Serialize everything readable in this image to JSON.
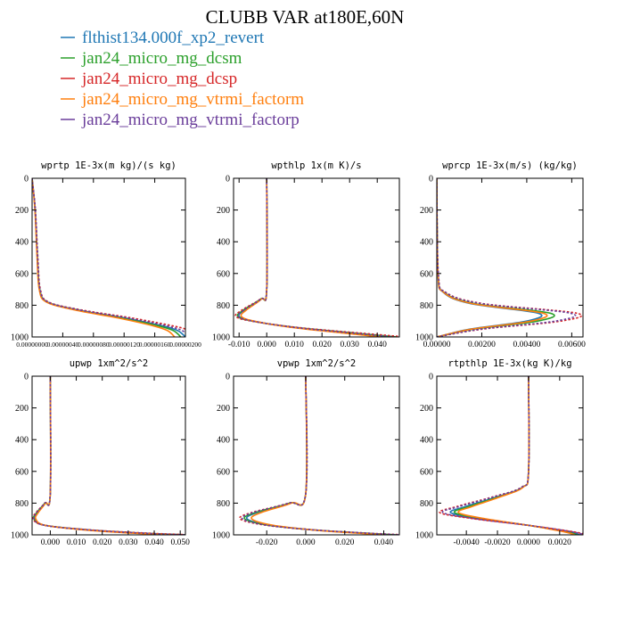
{
  "figure_title": "CLUBB VAR at180E,60N",
  "legend": [
    {
      "label": "flthist134.000f_xp2_revert",
      "color": "#1f77b4"
    },
    {
      "label": "jan24_micro_mg_dcsm",
      "color": "#2ca02c"
    },
    {
      "label": "jan24_micro_mg_dcsp",
      "color": "#d62728"
    },
    {
      "label": "jan24_micro_mg_vtrmi_factorm",
      "color": "#ff7f0e"
    },
    {
      "label": "jan24_micro_mg_vtrmi_factorp",
      "color": "#6a3d9a"
    }
  ],
  "chart_data": [
    {
      "type": "line",
      "title": "wprtp  1E-3x(m kg)/(s kg)",
      "xlim": [
        0,
        2e-06
      ],
      "ylim": [
        1000,
        0
      ],
      "yticks": [
        0,
        200,
        400,
        600,
        800,
        1000
      ],
      "xtick_labels": [
        "0.00000000",
        "0.00000040",
        "0.00000080",
        "0.00000120",
        "0.00000160",
        "0.00000200"
      ],
      "shape": "tail",
      "mean": [
        [
          0,
          0
        ],
        [
          4e-08,
          200
        ],
        [
          7e-08,
          500
        ],
        [
          1e-07,
          700
        ],
        [
          2e-07,
          780
        ],
        [
          6e-07,
          830
        ],
        [
          1.2e-06,
          880
        ],
        [
          1.7e-06,
          930
        ],
        [
          1.9e-06,
          960
        ],
        [
          2e-06,
          1000
        ]
      ],
      "factors": [
        1.0,
        0.97,
        1.08,
        0.93,
        1.03
      ],
      "series": [
        {
          "name": "flthist134.000f_xp2_revert",
          "color": "#1f77b4",
          "dash": false
        },
        {
          "name": "jan24_micro_mg_dcsm",
          "color": "#2ca02c",
          "dash": false
        },
        {
          "name": "jan24_micro_mg_dcsp",
          "color": "#d62728",
          "dash": true
        },
        {
          "name": "jan24_micro_mg_vtrmi_factorm",
          "color": "#ff7f0e",
          "dash": false
        },
        {
          "name": "jan24_micro_mg_vtrmi_factorp",
          "color": "#6a3d9a",
          "dash": true
        }
      ]
    },
    {
      "type": "line",
      "title": "wpthlp  1x(m K)/s",
      "xlim": [
        -0.012,
        0.048
      ],
      "ylim": [
        1000,
        0
      ],
      "yticks": [
        0,
        200,
        400,
        600,
        800,
        1000
      ],
      "xticks": [
        -0.01,
        0.0,
        0.01,
        0.02,
        0.03,
        0.04
      ],
      "xtick_labels": [
        "-0.010",
        "0.000",
        "0.010",
        "0.020",
        "0.030",
        "0.040"
      ],
      "shape": "dip-tail",
      "mean": [
        [
          0,
          0
        ],
        [
          0,
          700
        ],
        [
          -0.002,
          760
        ],
        [
          -0.008,
          830
        ],
        [
          -0.01,
          870
        ],
        [
          -0.005,
          900
        ],
        [
          0.01,
          940
        ],
        [
          0.03,
          975
        ],
        [
          0.045,
          1000
        ]
      ],
      "factors": [
        1.0,
        1.05,
        1.12,
        0.92,
        1.02
      ],
      "series": [
        {
          "name": "flthist134.000f_xp2_revert",
          "color": "#1f77b4",
          "dash": false
        },
        {
          "name": "jan24_micro_mg_dcsm",
          "color": "#2ca02c",
          "dash": false
        },
        {
          "name": "jan24_micro_mg_dcsp",
          "color": "#d62728",
          "dash": true
        },
        {
          "name": "jan24_micro_mg_vtrmi_factorm",
          "color": "#ff7f0e",
          "dash": false
        },
        {
          "name": "jan24_micro_mg_vtrmi_factorp",
          "color": "#6a3d9a",
          "dash": true
        }
      ]
    },
    {
      "type": "line",
      "title": "wprcp  1E-3x(m/s) (kg/kg)",
      "xlim": [
        0,
        0.0065
      ],
      "ylim": [
        1000,
        0
      ],
      "yticks": [
        0,
        200,
        400,
        600,
        800,
        1000
      ],
      "xticks": [
        0,
        0.002,
        0.004,
        0.006
      ],
      "xtick_labels": [
        "0.00000",
        "0.00200",
        "0.00400",
        "0.00600"
      ],
      "shape": "bulge",
      "mean": [
        [
          0,
          0
        ],
        [
          5e-05,
          600
        ],
        [
          0.0003,
          720
        ],
        [
          0.0015,
          790
        ],
        [
          0.0045,
          850
        ],
        [
          0.004,
          900
        ],
        [
          0.0015,
          950
        ],
        [
          0,
          1000
        ]
      ],
      "factors": [
        1.0,
        1.12,
        1.38,
        1.05,
        1.32
      ],
      "series": [
        {
          "name": "flthist134.000f_xp2_revert",
          "color": "#1f77b4",
          "dash": false
        },
        {
          "name": "jan24_micro_mg_dcsm",
          "color": "#2ca02c",
          "dash": false
        },
        {
          "name": "jan24_micro_mg_dcsp",
          "color": "#d62728",
          "dash": true
        },
        {
          "name": "jan24_micro_mg_vtrmi_factorm",
          "color": "#ff7f0e",
          "dash": false
        },
        {
          "name": "jan24_micro_mg_vtrmi_factorp",
          "color": "#6a3d9a",
          "dash": true
        }
      ]
    },
    {
      "type": "line",
      "title": "upwp   1xm^2/s^2",
      "xlim": [
        -0.007,
        0.052
      ],
      "ylim": [
        1000,
        0
      ],
      "yticks": [
        0,
        200,
        400,
        600,
        800,
        1000
      ],
      "xticks": [
        0,
        0.01,
        0.02,
        0.03,
        0.04,
        0.05
      ],
      "xtick_labels": [
        "0.000",
        "0.010",
        "0.020",
        "0.030",
        "0.040",
        "0.050"
      ],
      "shape": "dip-tail",
      "mean": [
        [
          0,
          0
        ],
        [
          0,
          740
        ],
        [
          -0.002,
          800
        ],
        [
          -0.005,
          860
        ],
        [
          -0.006,
          900
        ],
        [
          -0.002,
          940
        ],
        [
          0.015,
          970
        ],
        [
          0.035,
          990
        ],
        [
          0.05,
          1000
        ]
      ],
      "factors": [
        1.0,
        1.05,
        1.1,
        0.93,
        1.04
      ],
      "series": [
        {
          "name": "flthist134.000f_xp2_revert",
          "color": "#1f77b4",
          "dash": false
        },
        {
          "name": "jan24_micro_mg_dcsm",
          "color": "#2ca02c",
          "dash": false
        },
        {
          "name": "jan24_micro_mg_dcsp",
          "color": "#d62728",
          "dash": true
        },
        {
          "name": "jan24_micro_mg_vtrmi_factorm",
          "color": "#ff7f0e",
          "dash": false
        },
        {
          "name": "jan24_micro_mg_vtrmi_factorp",
          "color": "#6a3d9a",
          "dash": true
        }
      ]
    },
    {
      "type": "line",
      "title": "vpwp   1xm^2/s^2",
      "xlim": [
        -0.037,
        0.048
      ],
      "ylim": [
        1000,
        0
      ],
      "yticks": [
        0,
        200,
        400,
        600,
        800,
        1000
      ],
      "xticks": [
        -0.02,
        0.0,
        0.02,
        0.04
      ],
      "xtick_labels": [
        "-0.020",
        "0.000",
        "0.020",
        "0.040"
      ],
      "shape": "dip-tail",
      "mean": [
        [
          0,
          0
        ],
        [
          0,
          740
        ],
        [
          -0.008,
          800
        ],
        [
          -0.025,
          860
        ],
        [
          -0.03,
          900
        ],
        [
          -0.018,
          940
        ],
        [
          0.005,
          970
        ],
        [
          0.03,
          990
        ],
        [
          0.045,
          1000
        ]
      ],
      "factors": [
        1.0,
        1.04,
        1.12,
        0.92,
        1.08
      ],
      "series": [
        {
          "name": "flthist134.000f_xp2_revert",
          "color": "#1f77b4",
          "dash": false
        },
        {
          "name": "jan24_micro_mg_dcsm",
          "color": "#2ca02c",
          "dash": false
        },
        {
          "name": "jan24_micro_mg_dcsp",
          "color": "#d62728",
          "dash": true
        },
        {
          "name": "jan24_micro_mg_vtrmi_factorm",
          "color": "#ff7f0e",
          "dash": false
        },
        {
          "name": "jan24_micro_mg_vtrmi_factorp",
          "color": "#6a3d9a",
          "dash": true
        }
      ]
    },
    {
      "type": "line",
      "title": "rtpthlp  1E-3x(kg K)/kg",
      "xlim": [
        -0.0059,
        0.0035
      ],
      "ylim": [
        1000,
        0
      ],
      "yticks": [
        0,
        200,
        400,
        600,
        800,
        1000
      ],
      "xticks": [
        -0.004,
        -0.002,
        0.0,
        0.002
      ],
      "xtick_labels": [
        "-0.0040",
        "-0.0020",
        "0.0000",
        "0.0020"
      ],
      "shape": "dip-tail",
      "mean": [
        [
          0,
          0
        ],
        [
          0,
          600
        ],
        [
          -0.0004,
          700
        ],
        [
          -0.002,
          760
        ],
        [
          -0.004,
          820
        ],
        [
          -0.005,
          860
        ],
        [
          -0.003,
          900
        ],
        [
          0.0,
          940
        ],
        [
          0.0025,
          980
        ],
        [
          0.0033,
          1000
        ]
      ],
      "factors": [
        1.0,
        0.95,
        1.14,
        0.9,
        1.1
      ],
      "series": [
        {
          "name": "flthist134.000f_xp2_revert",
          "color": "#1f77b4",
          "dash": false
        },
        {
          "name": "jan24_micro_mg_dcsm",
          "color": "#2ca02c",
          "dash": false
        },
        {
          "name": "jan24_micro_mg_dcsp",
          "color": "#d62728",
          "dash": true
        },
        {
          "name": "jan24_micro_mg_vtrmi_factorm",
          "color": "#ff7f0e",
          "dash": false
        },
        {
          "name": "jan24_micro_mg_vtrmi_factorp",
          "color": "#6a3d9a",
          "dash": true
        }
      ]
    }
  ]
}
